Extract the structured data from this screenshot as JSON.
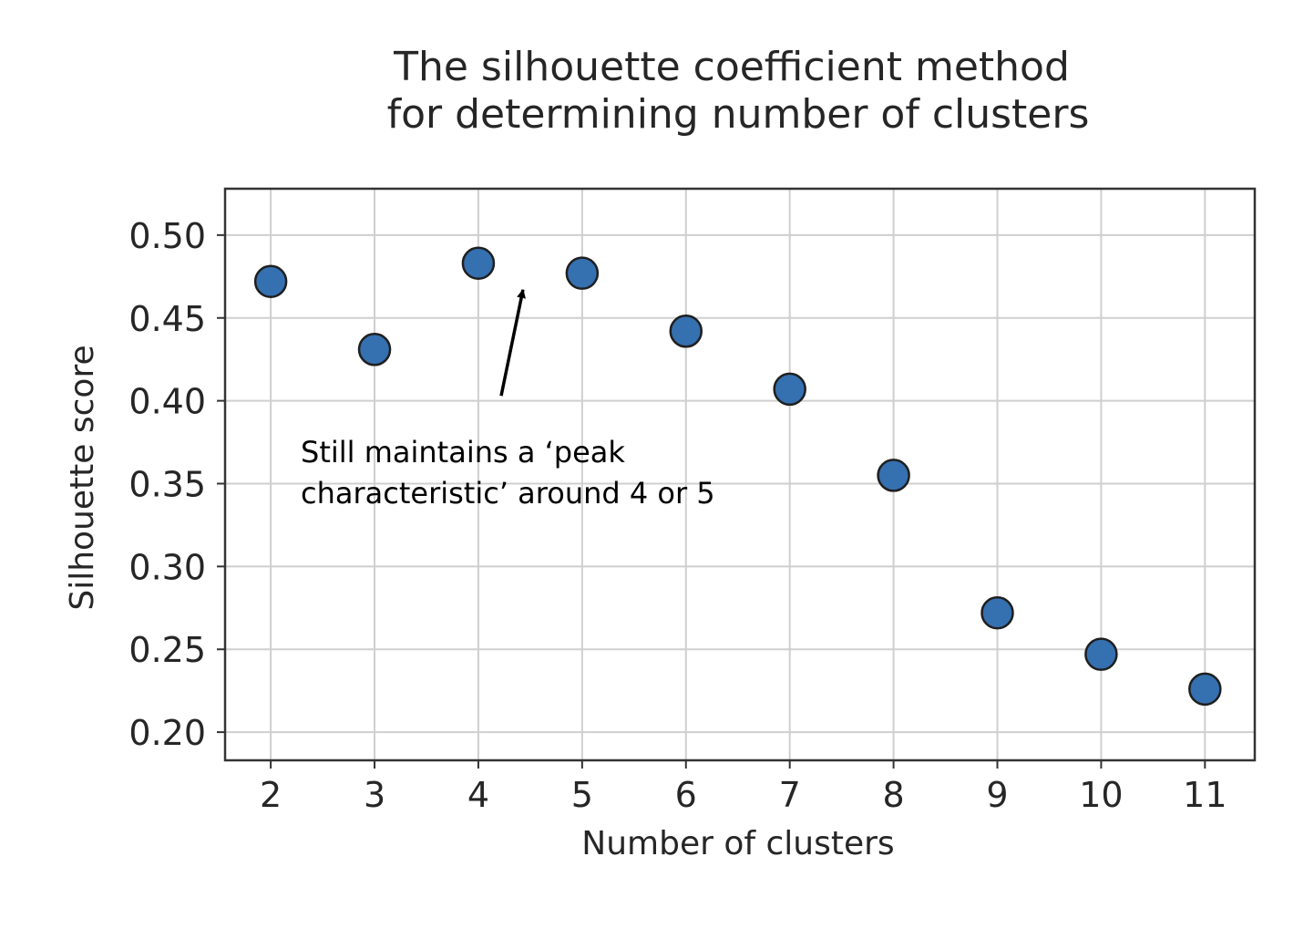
{
  "chart_data": {
    "type": "scatter",
    "title": [
      "The silhouette coefficient method",
      "for determining number of clusters"
    ],
    "xlabel": "Number of clusters",
    "ylabel": "Silhouette score",
    "x": [
      2,
      3,
      4,
      5,
      6,
      7,
      8,
      9,
      10,
      11
    ],
    "y": [
      0.472,
      0.431,
      0.483,
      0.477,
      0.442,
      0.407,
      0.355,
      0.272,
      0.247,
      0.226
    ],
    "xlim": [
      1.56,
      11.48
    ],
    "ylim": [
      0.183,
      0.528
    ],
    "xticks": [
      2,
      3,
      4,
      5,
      6,
      7,
      8,
      9,
      10,
      11
    ],
    "xtick_labels": [
      "2",
      "3",
      "4",
      "5",
      "6",
      "7",
      "8",
      "9",
      "10",
      "11"
    ],
    "yticks": [
      0.2,
      0.25,
      0.3,
      0.35,
      0.4,
      0.45,
      0.5
    ],
    "ytick_labels": [
      "0.20",
      "0.25",
      "0.30",
      "0.35",
      "0.40",
      "0.45",
      "0.50"
    ],
    "grid": true,
    "marker_color": "#3570b0",
    "marker_edge_color": "#1f1f1f",
    "annotation": {
      "lines": [
        "Still maintains a ‘peak",
        "characteristic’ around 4 or 5"
      ],
      "arrow_from": [
        4.22,
        0.403
      ],
      "arrow_to": [
        4.43,
        0.467
      ]
    }
  }
}
